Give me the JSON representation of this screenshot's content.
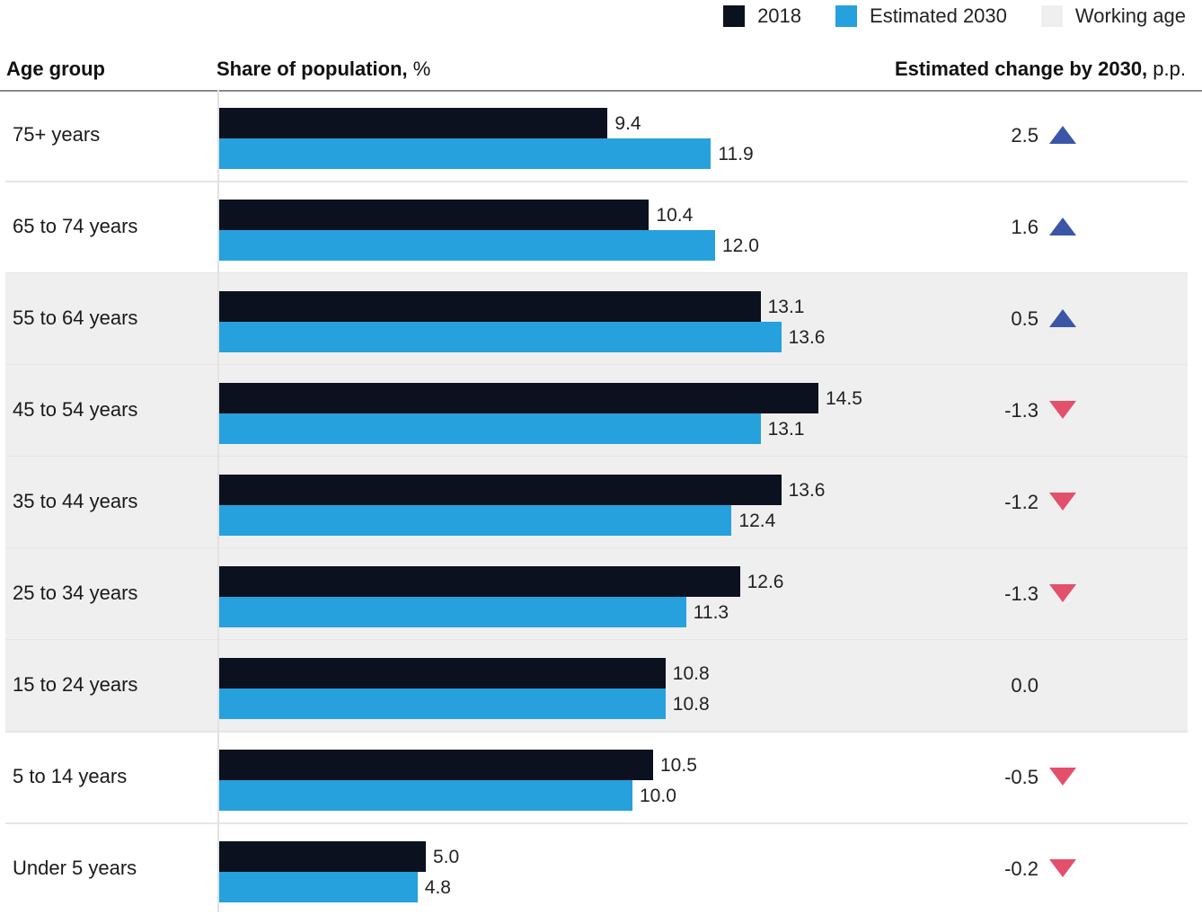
{
  "legend": {
    "items": [
      {
        "label": "2018",
        "color": "#0b111e"
      },
      {
        "label": "Estimated 2030",
        "color": "#26a1dd"
      },
      {
        "label": "Working age",
        "color": "#efefef"
      }
    ]
  },
  "header": {
    "age_group": "Age group",
    "share_title": "Share of population,",
    "share_unit": "%",
    "change_title": "Estimated change by 2030,",
    "change_unit": "p.p."
  },
  "colors": {
    "series_2018": "#0b111e",
    "series_2030": "#26a1dd",
    "working_age_bg": "#efefef",
    "increase": "#3b56a6",
    "decrease": "#e2506c"
  },
  "chart_data": {
    "type": "bar",
    "orientation": "horizontal",
    "categories": [
      "75+ years",
      "65 to 74 years",
      "55 to 64 years",
      "45 to 54 years",
      "35 to 44 years",
      "25 to 34 years",
      "15 to 24 years",
      "5 to 14 years",
      "Under 5 years"
    ],
    "series": [
      {
        "name": "2018",
        "values": [
          9.4,
          10.4,
          13.1,
          14.5,
          13.6,
          12.6,
          10.8,
          10.5,
          5.0
        ],
        "labels": [
          "9.4",
          "10.4",
          "13.1",
          "14.5",
          "13.6",
          "12.6",
          "10.8",
          "10.5",
          "5.0"
        ]
      },
      {
        "name": "Estimated 2030",
        "values": [
          11.9,
          12.0,
          13.6,
          13.1,
          12.4,
          11.3,
          10.8,
          10.0,
          4.8
        ],
        "labels": [
          "11.9",
          "12.0",
          "13.6",
          "13.1",
          "12.4",
          "11.3",
          "10.8",
          "10.0",
          "4.8"
        ]
      }
    ],
    "change": [
      "2.5",
      "1.6",
      "0.5",
      "-1.3",
      "-1.2",
      "-1.3",
      "0.0",
      "-0.5",
      "-0.2"
    ],
    "change_direction": [
      "up",
      "up",
      "up",
      "down",
      "down",
      "down",
      "none",
      "down",
      "down"
    ],
    "working_age": [
      false,
      false,
      true,
      true,
      true,
      true,
      true,
      false,
      false
    ],
    "xlim": [
      0,
      16.6
    ],
    "grid": false,
    "legend_position": "top-right"
  }
}
